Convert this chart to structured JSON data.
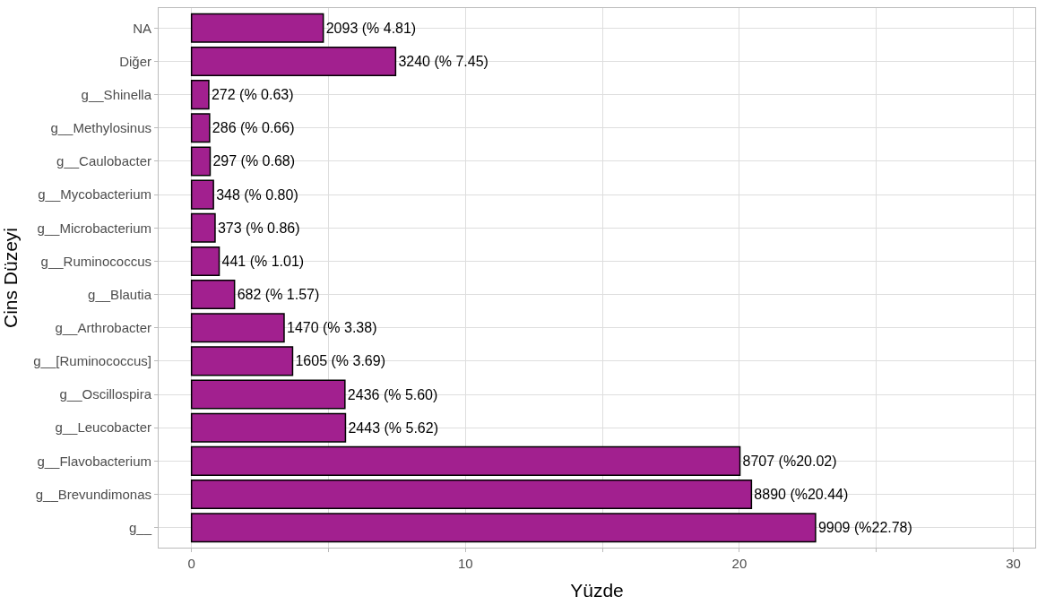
{
  "chart_data": {
    "type": "bar",
    "orientation": "horizontal",
    "xlabel": "Yüzde",
    "ylabel": "Cins Düzeyi",
    "categories": [
      "NA",
      "Diğer",
      "g__Shinella",
      "g__Methylosinus",
      "g__Caulobacter",
      "g__Mycobacterium",
      "g__Microbacterium",
      "g__Ruminococcus",
      "g__Blautia",
      "g__Arthrobacter",
      "g__[Ruminococcus]",
      "g__Oscillospira",
      "g__Leucobacter",
      "g__Flavobacterium",
      "g__Brevundimonas",
      "g__"
    ],
    "values": [
      4.81,
      7.45,
      0.63,
      0.66,
      0.68,
      0.8,
      0.86,
      1.01,
      1.57,
      3.38,
      3.69,
      5.6,
      5.62,
      20.02,
      20.44,
      22.78
    ],
    "value_labels": [
      "2093 (% 4.81)",
      "3240 (% 7.45)",
      "272 (% 0.63)",
      "286 (% 0.66)",
      "297 (% 0.68)",
      "348 (% 0.80)",
      "373 (% 0.86)",
      "441 (% 1.01)",
      "682 (% 1.57)",
      "1470 (% 3.38)",
      "1605 (% 3.69)",
      "2436 (% 5.60)",
      "2443 (% 5.62)",
      "8707 (%20.02)",
      "8890 (%20.44)",
      "9909 (%22.78)"
    ],
    "color": "#a2208f",
    "xlim": [
      -1.2,
      30.8
    ],
    "xticks": [
      0,
      {
        "value": 5,
        "label": null
      },
      10,
      {
        "value": 15,
        "label": null
      },
      20,
      {
        "value": 25,
        "label": null
      },
      30
    ],
    "grid": true
  }
}
